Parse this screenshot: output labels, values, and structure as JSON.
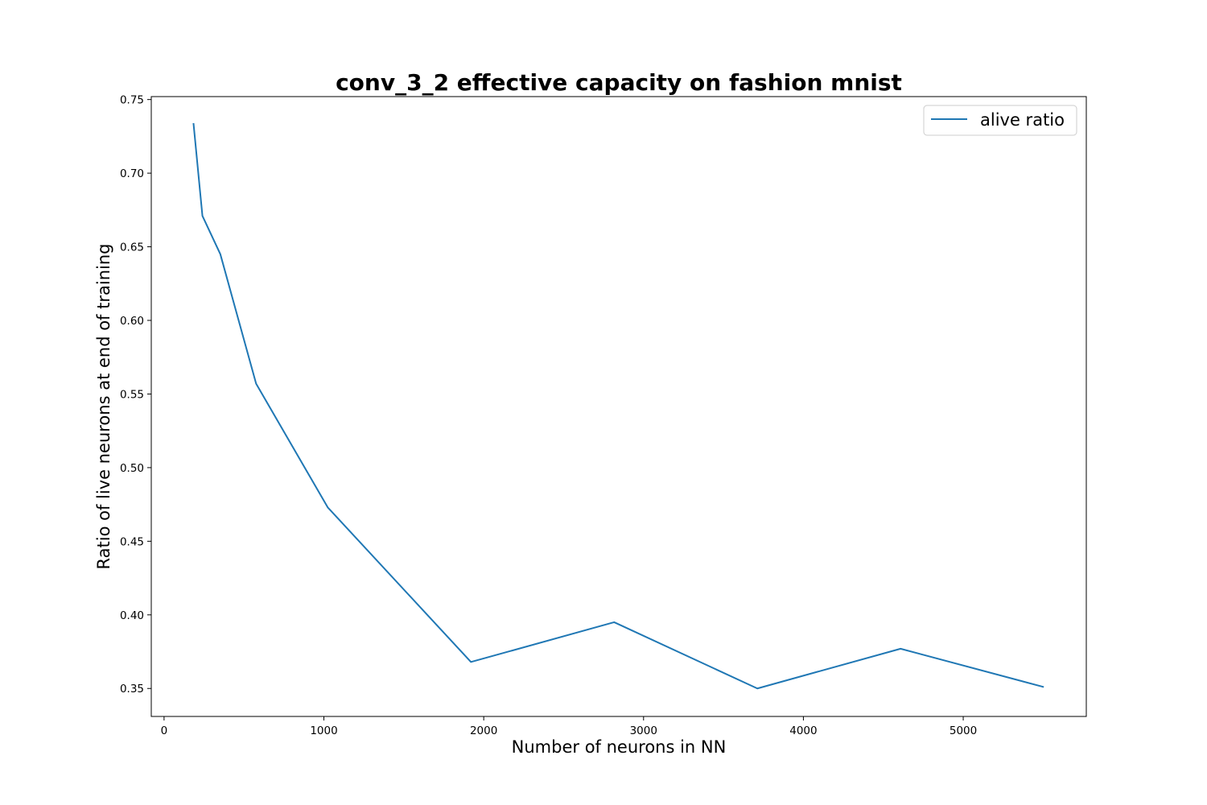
{
  "chart_data": {
    "type": "line",
    "title": "conv_3_2 effective capacity on fashion mnist",
    "xlabel": "Number of neurons in NN",
    "ylabel": "Ratio of live neurons at end of training",
    "xlim": [
      -80,
      5770
    ],
    "ylim": [
      0.331,
      0.752
    ],
    "xticks": [
      0,
      1000,
      2000,
      3000,
      4000,
      5000
    ],
    "yticks": [
      0.35,
      0.4,
      0.45,
      0.5,
      0.55,
      0.6,
      0.65,
      0.7,
      0.75
    ],
    "xtick_labels": [
      "0",
      "1000",
      "2000",
      "3000",
      "4000",
      "5000"
    ],
    "ytick_labels": [
      "0.35",
      "0.40",
      "0.45",
      "0.50",
      "0.55",
      "0.60",
      "0.65",
      "0.70",
      "0.75"
    ],
    "legend_position": "upper-right",
    "grid": false,
    "series": [
      {
        "name": "alive ratio",
        "color": "#1f77b4",
        "x": [
          184,
          240,
          352,
          576,
          1024,
          1920,
          2816,
          3712,
          4608,
          5504
        ],
        "y": [
          0.734,
          0.671,
          0.645,
          0.557,
          0.473,
          0.368,
          0.395,
          0.35,
          0.377,
          0.351
        ]
      }
    ]
  }
}
